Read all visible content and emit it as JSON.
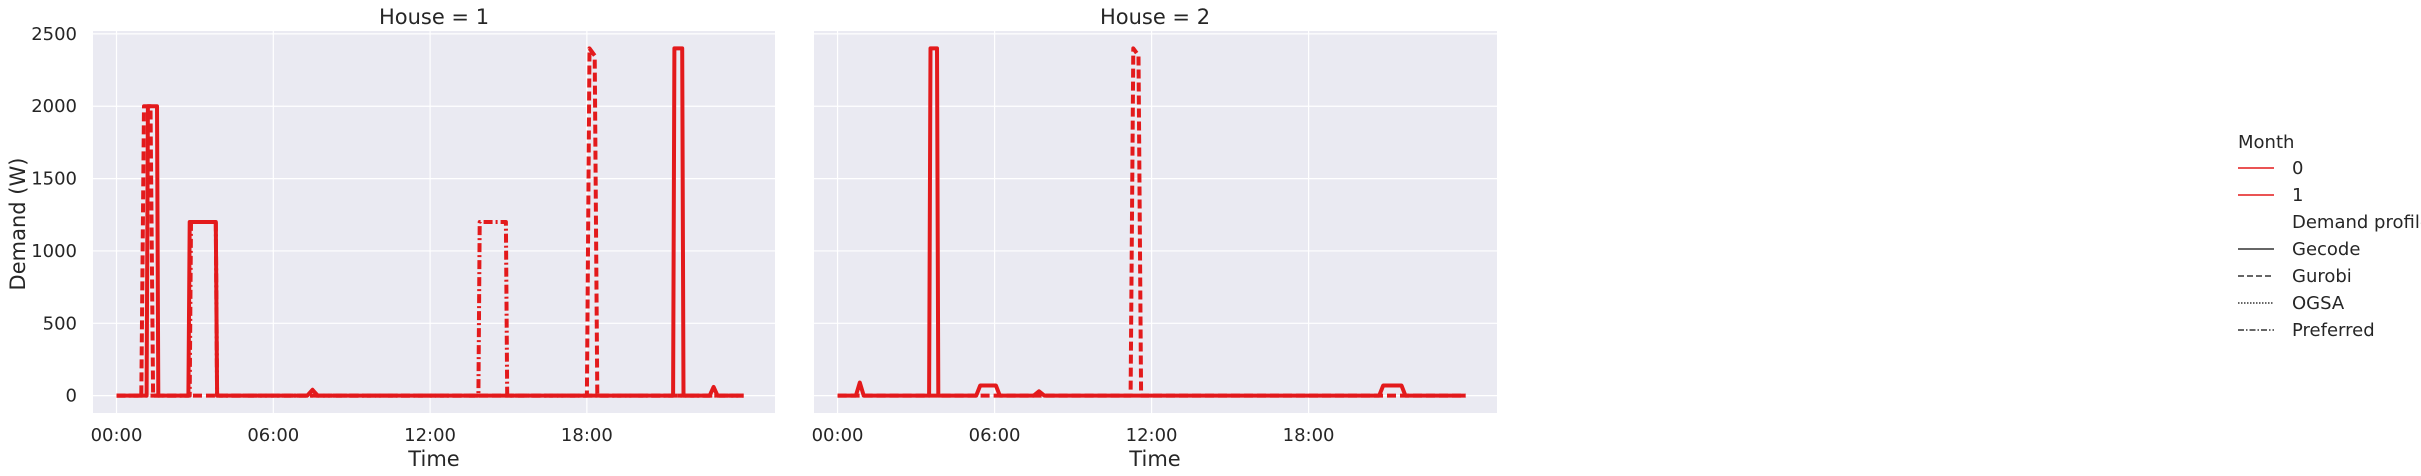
{
  "chart_data": {
    "type": "line",
    "ylabel": "Demand (W)",
    "xlabel": "Time",
    "xticks": [
      "00:00",
      "06:00",
      "12:00",
      "18:00"
    ],
    "yticks": [
      0,
      500,
      1000,
      1500,
      2000,
      2500
    ],
    "ylim": [
      -120,
      2520
    ],
    "xlim_hours": [
      -0.9,
      25.2
    ],
    "grid": true,
    "color": "#e31a1c",
    "legend": {
      "placement": "right",
      "hue_title": "Month",
      "hue_items": [
        "0",
        "1"
      ],
      "style_title": "Demand profile",
      "style_items": [
        "Gecode",
        "Gurobi",
        "OGSA",
        "Preferred"
      ]
    },
    "panels": [
      {
        "title": "House = 1",
        "series": [
          {
            "style": "Gecode",
            "x": [
              0,
              1.15,
              1.2,
              1.55,
              1.6,
              2.75,
              2.8,
              3.8,
              3.85,
              7.3,
              7.5,
              7.7,
              21.3,
              21.35,
              21.65,
              21.7,
              22.7,
              22.85,
              23,
              24
            ],
            "y": [
              0,
              0,
              2000,
              2000,
              0,
              0,
              1200,
              1200,
              0,
              0,
              40,
              0,
              0,
              2400,
              2400,
              0,
              0,
              60,
              0,
              0
            ]
          },
          {
            "style": "Gurobi",
            "x": [
              0,
              0.95,
              1.05,
              1.3,
              1.4,
              18,
              18.1,
              18.3,
              18.4,
              24
            ],
            "y": [
              0,
              0,
              2000,
              2000,
              0,
              0,
              2400,
              2350,
              0,
              0
            ]
          },
          {
            "style": "Preferred",
            "x": [
              0,
              2.8,
              2.85,
              3.8,
              3.85,
              13.85,
              13.9,
              14.9,
              14.95,
              24
            ],
            "y": [
              0,
              0,
              1200,
              1200,
              0,
              0,
              1200,
              1200,
              0,
              0
            ]
          }
        ]
      },
      {
        "title": "House = 2",
        "series": [
          {
            "style": "Gecode",
            "x": [
              0,
              0.7,
              0.85,
              1,
              3.5,
              3.55,
              3.8,
              3.85,
              5.3,
              5.45,
              6.05,
              6.2,
              7.5,
              7.7,
              7.9,
              20.7,
              20.85,
              21.55,
              21.7,
              24
            ],
            "y": [
              0,
              0,
              90,
              0,
              0,
              2400,
              2400,
              0,
              0,
              70,
              70,
              0,
              0,
              30,
              0,
              0,
              70,
              70,
              0,
              0
            ]
          },
          {
            "style": "Gurobi",
            "x": [
              0,
              11.2,
              11.3,
              11.5,
              11.6,
              24
            ],
            "y": [
              0,
              0,
              2400,
              2350,
              0,
              0
            ]
          }
        ]
      }
    ]
  }
}
